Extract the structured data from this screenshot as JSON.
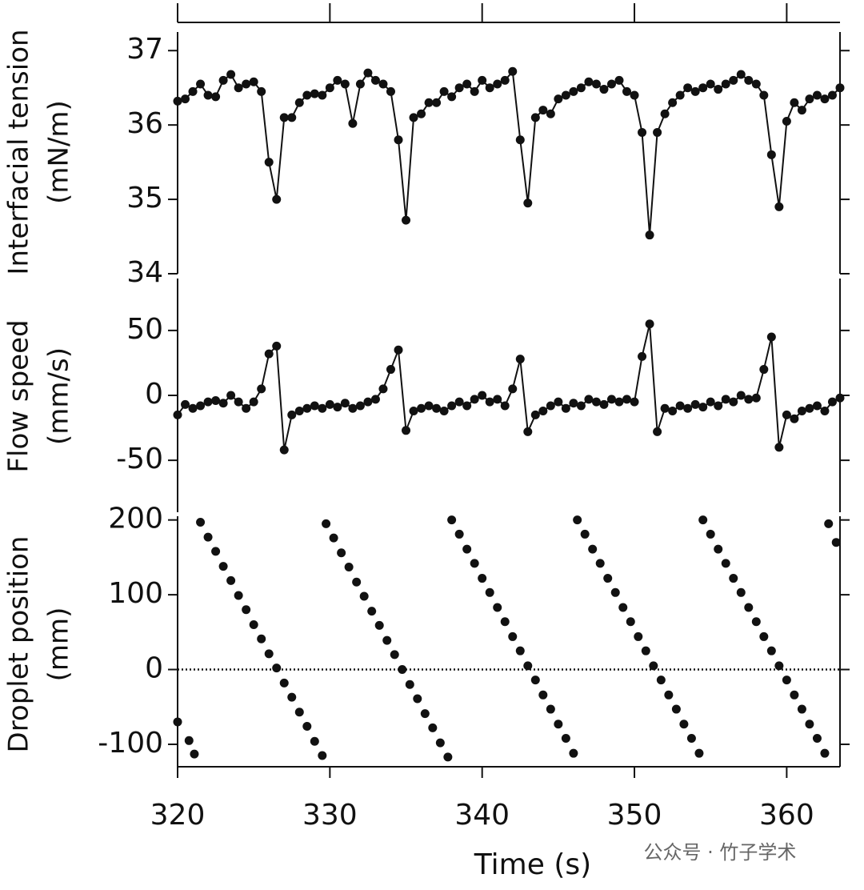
{
  "chart_data": [
    {
      "type": "line",
      "ylabel": [
        "Interfacial tension",
        "(mN/m)"
      ],
      "xlim": [
        320,
        363.5
      ],
      "xticks": [
        320,
        330,
        340,
        350,
        360
      ],
      "ylim": [
        34,
        37.25
      ],
      "yticks": [
        34,
        35,
        36,
        37
      ],
      "x": [
        320,
        320.5,
        321,
        321.5,
        322,
        322.5,
        323,
        323.5,
        324,
        324.5,
        325,
        325.5,
        326,
        326.5,
        327,
        327.5,
        328,
        328.5,
        329,
        329.5,
        330,
        330.5,
        331,
        331.5,
        332,
        332.5,
        333,
        333.5,
        334,
        334.5,
        335,
        335.5,
        336,
        336.5,
        337,
        337.5,
        338,
        338.5,
        339,
        339.5,
        340,
        340.5,
        341,
        341.5,
        342,
        342.5,
        343,
        343.5,
        344,
        344.5,
        345,
        345.5,
        346,
        346.5,
        347,
        347.5,
        348,
        348.5,
        349,
        349.5,
        350,
        350.5,
        351,
        351.5,
        352,
        352.5,
        353,
        353.5,
        354,
        354.5,
        355,
        355.5,
        356,
        356.5,
        357,
        357.5,
        358,
        358.5,
        359,
        359.5,
        360,
        360.5,
        361,
        361.5,
        362,
        362.5,
        363,
        363.5
      ],
      "series": [
        {
          "color": "#111111",
          "values": [
            36.32,
            36.35,
            36.45,
            36.55,
            36.4,
            36.38,
            36.6,
            36.68,
            36.5,
            36.55,
            36.58,
            36.45,
            35.5,
            35.0,
            36.1,
            36.1,
            36.3,
            36.4,
            36.42,
            36.4,
            36.5,
            36.6,
            36.55,
            36.02,
            36.55,
            36.7,
            36.6,
            36.55,
            36.45,
            35.8,
            34.72,
            36.1,
            36.15,
            36.3,
            36.3,
            36.45,
            36.38,
            36.5,
            36.55,
            36.45,
            36.6,
            36.5,
            36.55,
            36.6,
            36.72,
            35.8,
            34.95,
            36.1,
            36.2,
            36.15,
            36.35,
            36.4,
            36.45,
            36.5,
            36.58,
            36.55,
            36.48,
            36.55,
            36.6,
            36.45,
            36.4,
            35.9,
            34.52,
            35.9,
            36.15,
            36.3,
            36.4,
            36.5,
            36.45,
            36.5,
            36.55,
            36.48,
            36.55,
            36.6,
            36.68,
            36.6,
            36.55,
            36.4,
            35.6,
            34.9,
            36.05,
            36.3,
            36.2,
            36.35,
            36.4,
            36.35,
            36.4,
            36.5
          ]
        }
      ]
    },
    {
      "type": "line",
      "ylabel": [
        "Flow speed",
        "(mm/s)"
      ],
      "xlim": [
        320,
        363.5
      ],
      "xticks": [
        320,
        330,
        340,
        350,
        360
      ],
      "ylim": [
        -90,
        90
      ],
      "yticks": [
        -50,
        0,
        50
      ],
      "x": [
        320,
        320.5,
        321,
        321.5,
        322,
        322.5,
        323,
        323.5,
        324,
        324.5,
        325,
        325.5,
        326,
        326.5,
        327,
        327.5,
        328,
        328.5,
        329,
        329.5,
        330,
        330.5,
        331,
        331.5,
        332,
        332.5,
        333,
        333.5,
        334,
        334.5,
        335,
        335.5,
        336,
        336.5,
        337,
        337.5,
        338,
        338.5,
        339,
        339.5,
        340,
        340.5,
        341,
        341.5,
        342,
        342.5,
        343,
        343.5,
        344,
        344.5,
        345,
        345.5,
        346,
        346.5,
        347,
        347.5,
        348,
        348.5,
        349,
        349.5,
        350,
        350.5,
        351,
        351.5,
        352,
        352.5,
        353,
        353.5,
        354,
        354.5,
        355,
        355.5,
        356,
        356.5,
        357,
        357.5,
        358,
        358.5,
        359,
        359.5,
        360,
        360.5,
        361,
        361.5,
        362,
        362.5,
        363,
        363.5
      ],
      "series": [
        {
          "color": "#111111",
          "values": [
            -15,
            -7,
            -10,
            -8,
            -5,
            -4,
            -6,
            0,
            -5,
            -10,
            -5,
            5,
            32,
            38,
            -42,
            -15,
            -12,
            -10,
            -8,
            -10,
            -7,
            -9,
            -6,
            -10,
            -8,
            -5,
            -3,
            5,
            20,
            35,
            -27,
            -12,
            -10,
            -8,
            -10,
            -12,
            -8,
            -5,
            -8,
            -3,
            0,
            -5,
            -3,
            -8,
            5,
            28,
            -28,
            -15,
            -12,
            -8,
            -5,
            -10,
            -6,
            -8,
            -3,
            -5,
            -7,
            -3,
            -5,
            -3,
            -5,
            30,
            55,
            -28,
            -10,
            -12,
            -8,
            -10,
            -7,
            -9,
            -5,
            -8,
            -3,
            -5,
            0,
            -3,
            -2,
            20,
            45,
            -40,
            -15,
            -18,
            -12,
            -10,
            -8,
            -12,
            -5,
            -2
          ]
        }
      ]
    },
    {
      "type": "scatter",
      "ylabel": [
        "Droplet position",
        "(mm)"
      ],
      "xlabel": "Time (s)",
      "xlim": [
        320,
        363.5
      ],
      "xticks": [
        320,
        330,
        340,
        350,
        360
      ],
      "ylim": [
        -130,
        205
      ],
      "yticks": [
        -100,
        0,
        100,
        200
      ],
      "reference_line": 0,
      "x": [
        320,
        320.75,
        321.1,
        321.5,
        322,
        322.5,
        323,
        323.5,
        324,
        324.5,
        325,
        325.5,
        326,
        326.5,
        327,
        327.5,
        328,
        328.5,
        329,
        329.5,
        329.75,
        330.25,
        330.75,
        331.25,
        331.75,
        332.25,
        332.75,
        333.25,
        333.75,
        334.25,
        334.75,
        335.25,
        335.75,
        336.25,
        336.75,
        337.25,
        337.75,
        338,
        338.5,
        339,
        339.5,
        340,
        340.5,
        341,
        341.5,
        342,
        342.5,
        343,
        343.5,
        344,
        344.5,
        345,
        345.5,
        346,
        346.25,
        346.75,
        347.25,
        347.75,
        348.25,
        348.75,
        349.25,
        349.75,
        350.25,
        350.75,
        351.25,
        351.75,
        352.25,
        352.75,
        353.25,
        353.75,
        354.25,
        354.5,
        355,
        355.5,
        356,
        356.5,
        357,
        357.5,
        358,
        358.5,
        359,
        359.5,
        360,
        360.5,
        361,
        361.5,
        362,
        362.5,
        362.75,
        363.25
      ],
      "series": [
        {
          "color": "#111111",
          "values": [
            -70,
            -95,
            -113,
            197,
            177,
            158,
            138,
            119,
            99,
            80,
            60,
            41,
            21,
            2,
            -18,
            -37,
            -57,
            -76,
            -96,
            -115,
            195,
            176,
            156,
            137,
            117,
            98,
            78,
            59,
            39,
            20,
            0,
            -20,
            -39,
            -59,
            -78,
            -98,
            -117,
            200,
            181,
            161,
            142,
            122,
            103,
            83,
            64,
            44,
            25,
            5,
            -14,
            -34,
            -53,
            -73,
            -92,
            -112,
            200,
            181,
            161,
            142,
            122,
            103,
            83,
            64,
            44,
            25,
            5,
            -14,
            -34,
            -53,
            -73,
            -92,
            -112,
            200,
            181,
            161,
            142,
            122,
            103,
            83,
            64,
            44,
            25,
            5,
            -14,
            -34,
            -53,
            -73,
            -92,
            -112,
            195,
            170
          ]
        }
      ]
    }
  ],
  "watermark": "公众号 · 竹子学术"
}
